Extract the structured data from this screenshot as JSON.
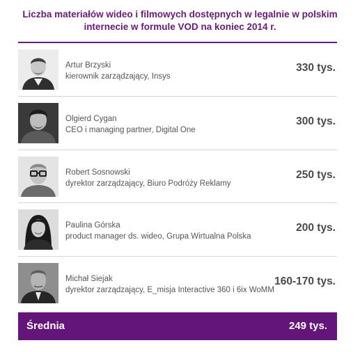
{
  "title": {
    "line1": "Liczba materiałów wideo i filmowych dostępnych w legalnie w polskim",
    "line2": "internecie w formule VOD na koniec 2014 r."
  },
  "colors": {
    "accent": "#64157a",
    "title": "#6a1a7a",
    "text": "#555555",
    "divider": "#d6d6d6"
  },
  "rows": [
    {
      "name": "Artur Brzyski",
      "role": "kierownik zarządzający, Insys",
      "value": "330 tys."
    },
    {
      "name": "Olgierd Cygan",
      "role": "CEO i managing partner, Digital One",
      "value": "300 tys."
    },
    {
      "name": "Robert Sosnowski",
      "role": "dyrektor zarządzający, Biuro Podróży Reklamy",
      "value": "250 tys."
    },
    {
      "name": "Paulina Górska",
      "role": "product manager ds. wideo, Grupa Wirtualna Polska",
      "value": "200 tys."
    },
    {
      "name": "Michał Siejak",
      "role": "dyrektor zarządzający, E_misja Interactive 360 i 6ix WoMM",
      "value": "160-170 tys."
    }
  ],
  "average": {
    "label": "Średnia",
    "value": "249 tys."
  }
}
